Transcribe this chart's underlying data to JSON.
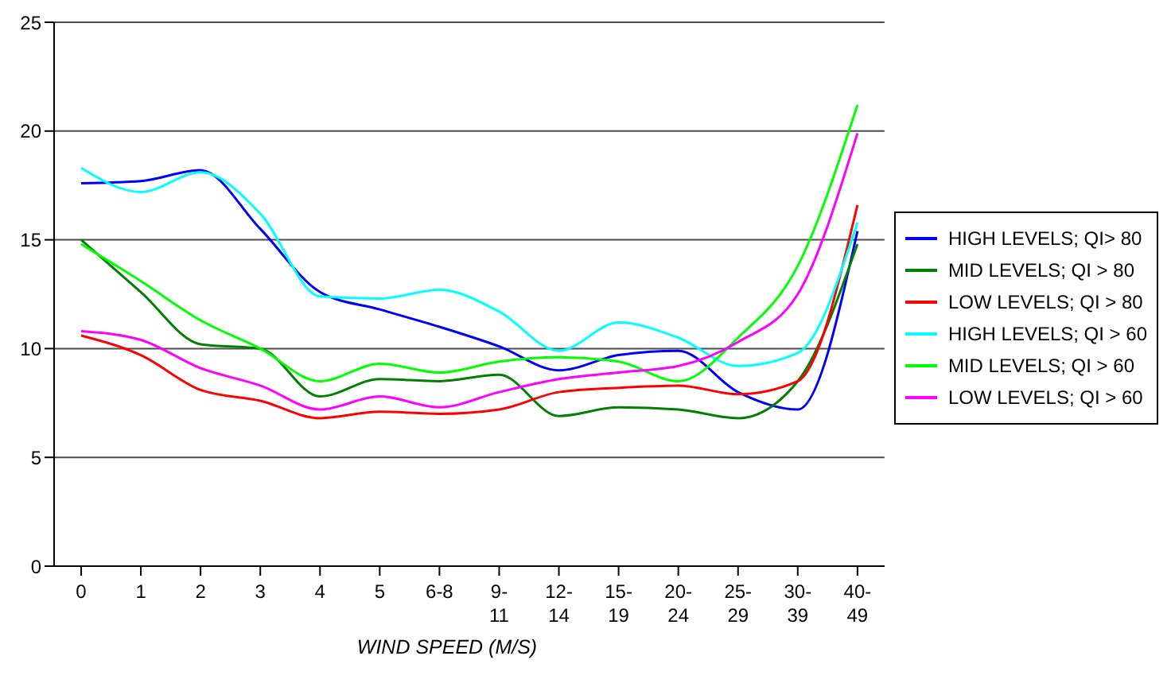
{
  "chart_data": {
    "type": "line",
    "xlabel": "WIND SPEED (M/S)",
    "categories": [
      "0",
      "1",
      "2",
      "3",
      "4",
      "5",
      "6-8",
      "9-11",
      "12-14",
      "15-19",
      "20-24",
      "25-29",
      "30-39",
      "40-49"
    ],
    "series": [
      {
        "name": "HIGH LEVELS; QI> 80",
        "color": "#0000ff",
        "values": [
          17.6,
          17.7,
          18.2,
          15.5,
          12.6,
          11.8,
          11.0,
          10.1,
          9.0,
          9.7,
          9.9,
          8.0,
          7.2,
          15.4
        ]
      },
      {
        "name": "MID LEVELS; QI > 80",
        "color": "#008000",
        "values": [
          15.0,
          12.6,
          10.2,
          10.0,
          7.8,
          8.6,
          8.5,
          8.8,
          6.9,
          7.3,
          7.2,
          6.8,
          8.5,
          14.8
        ]
      },
      {
        "name": "LOW LEVELS; QI > 80",
        "color": "#ff0000",
        "values": [
          10.6,
          9.7,
          8.1,
          7.6,
          6.8,
          7.1,
          7.0,
          7.2,
          8.0,
          8.2,
          8.3,
          7.9,
          8.5,
          16.6
        ]
      },
      {
        "name": "HIGH LEVELS; QI > 60",
        "color": "#00ffff",
        "values": [
          18.3,
          17.2,
          18.1,
          16.2,
          12.4,
          12.3,
          12.7,
          11.7,
          9.9,
          11.2,
          10.5,
          9.2,
          9.8,
          15.8
        ]
      },
      {
        "name": "MID LEVELS; QI > 60",
        "color": "#00ff00",
        "values": [
          14.8,
          13.1,
          11.3,
          10.0,
          8.5,
          9.3,
          8.9,
          9.4,
          9.6,
          9.4,
          8.5,
          10.5,
          13.8,
          21.2
        ]
      },
      {
        "name": "LOW LEVELS; QI > 60",
        "color": "#ff00ff",
        "values": [
          10.8,
          10.4,
          9.1,
          8.3,
          7.2,
          7.8,
          7.3,
          8.0,
          8.6,
          8.9,
          9.2,
          10.3,
          12.5,
          19.9
        ]
      }
    ],
    "ylim": [
      0,
      25
    ],
    "yticks": [
      0,
      5,
      10,
      15,
      20,
      25
    ],
    "grid": "y",
    "legend": "right",
    "marker": "none",
    "line_style": "solid"
  }
}
